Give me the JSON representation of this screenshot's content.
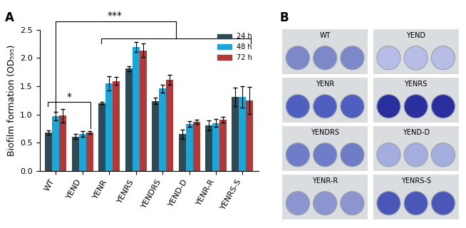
{
  "chart_data": {
    "type": "bar",
    "y_label": "Biofilm formation (OD₅₉₅)",
    "categories": [
      "WT",
      "YEND",
      "YENR",
      "YENRS",
      "YENDRS",
      "YEND-D",
      "YENR-R",
      "YENRS-S"
    ],
    "series": [
      {
        "name": "24 h",
        "color": "#2e4a57",
        "values": [
          0.68,
          0.61,
          1.2,
          1.81,
          1.24,
          0.65,
          0.81,
          1.31
        ],
        "errors": [
          0.04,
          0.04,
          0.02,
          0.04,
          0.06,
          0.08,
          0.09,
          0.16
        ]
      },
      {
        "name": "48 h",
        "color": "#1ba6d9",
        "values": [
          0.97,
          0.66,
          1.55,
          2.19,
          1.46,
          0.83,
          0.85,
          1.31
        ],
        "errors": [
          0.08,
          0.05,
          0.12,
          0.09,
          0.07,
          0.05,
          0.07,
          0.19
        ]
      },
      {
        "name": "72 h",
        "color": "#b03a3a",
        "values": [
          0.98,
          0.68,
          1.59,
          2.13,
          1.61,
          0.87,
          0.91,
          1.25
        ],
        "errors": [
          0.12,
          0.03,
          0.07,
          0.12,
          0.09,
          0.04,
          0.05,
          0.24
        ]
      }
    ],
    "ylim": [
      0,
      2.5
    ],
    "yticks": [
      {
        "value": 0,
        "label": "0.0"
      },
      {
        "value": 0.5,
        "label": "0.5"
      },
      {
        "value": 1.0,
        "label": "1.0"
      },
      {
        "value": 1.5,
        "label": "1.5"
      },
      {
        "value": 2.0,
        "label": "2.0"
      },
      {
        "value": 2.5,
        "label": "2.5"
      }
    ],
    "legend": "upper right",
    "annotations": [
      {
        "text": "***"
      },
      {
        "text": "*"
      }
    ]
  },
  "panel_labels": [
    "A",
    "B"
  ],
  "panel_b": {
    "groups": [
      "WT",
      "YEND",
      "YENR",
      "YENRS",
      "YENDRS",
      "YEND-D",
      "YENR-R",
      "YENRS-S"
    ],
    "colors": [
      "#7d88c9",
      "#b7bde6",
      "#4f5fc0",
      "#2a2f9e",
      "#6f7cc8",
      "#a5addf",
      "#8c95d0",
      "#4a56b8"
    ]
  }
}
